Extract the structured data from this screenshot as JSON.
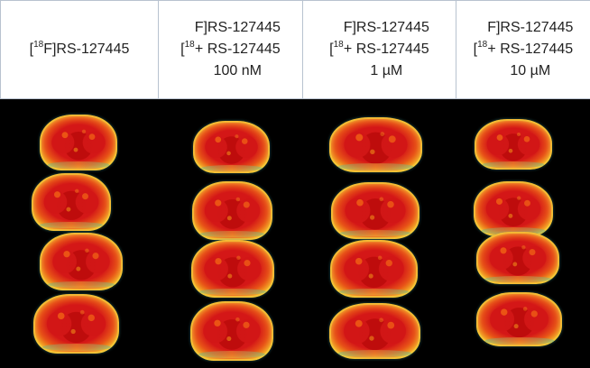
{
  "figure": {
    "columns": [
      {
        "prefix": "[",
        "isotope": "18",
        "suffix": "F]RS-127445"
      },
      {
        "prefix": "[",
        "isotope": "18",
        "suffix": "F]RS-127445\n+ RS-127445\n100 nM"
      },
      {
        "prefix": "[",
        "isotope": "18",
        "suffix": "F]RS-127445\n+ RS-127445\n1 µM"
      },
      {
        "prefix": "[",
        "isotope": "18",
        "suffix": "F]RS-127445\n+ RS-127445\n10 µM"
      }
    ],
    "colors": {
      "background": "#000000",
      "hot": "#d41717",
      "warm": "#f09b1c",
      "cool": "#4bb2a4"
    }
  }
}
